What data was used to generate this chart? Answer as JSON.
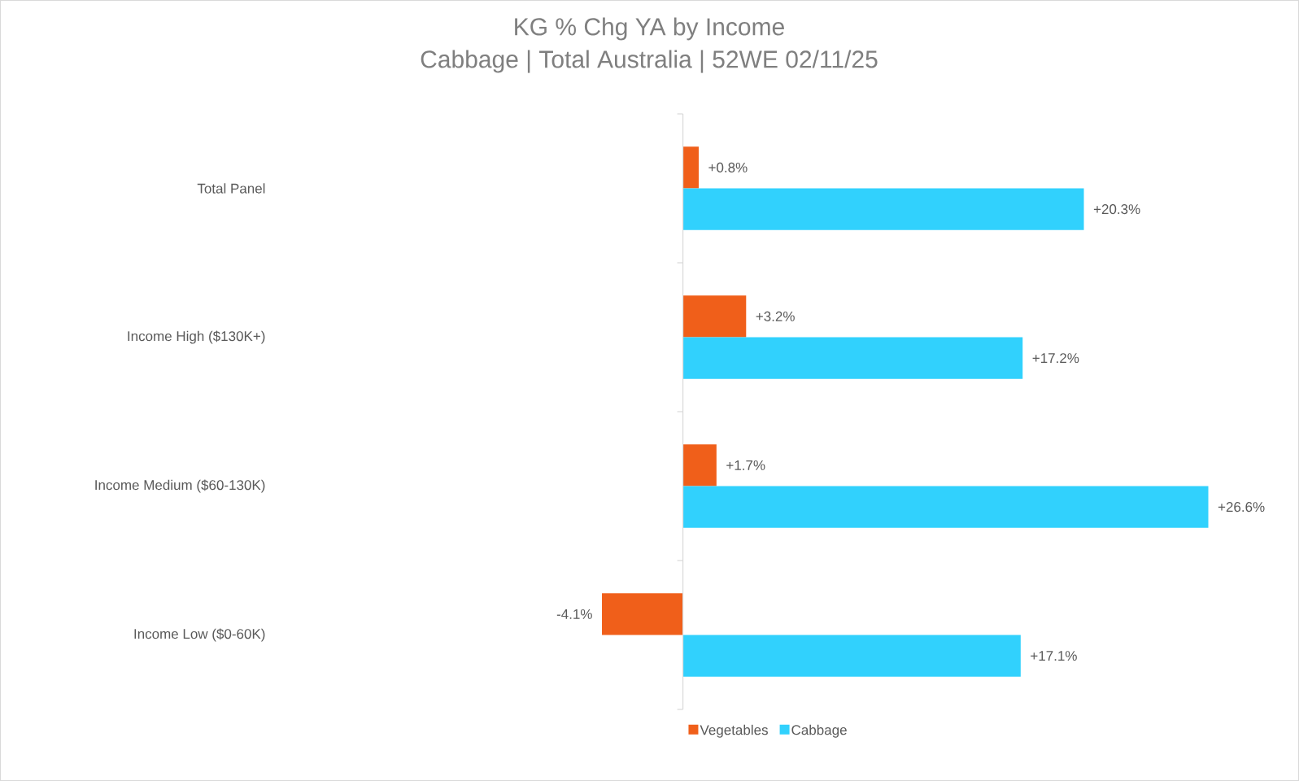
{
  "chart_data": {
    "type": "bar",
    "orientation": "horizontal",
    "title": "KG % Chg YA by Income",
    "subtitle": "Cabbage | Total Australia | 52WE 02/11/25",
    "categories": [
      "Total Panel",
      "Income High ($130K+)",
      "Income Medium ($60-130K)",
      "Income Low ($0-60K)"
    ],
    "series": [
      {
        "name": "Vegetables",
        "color": "#f05f1a",
        "values": [
          0.8,
          3.2,
          1.7,
          -4.1
        ],
        "value_labels": [
          "+0.8%",
          "+3.2%",
          "+1.7%",
          "-4.1%"
        ]
      },
      {
        "name": "Cabbage",
        "color": "#31d1fd",
        "values": [
          20.3,
          17.2,
          26.6,
          17.1
        ],
        "value_labels": [
          "+20.3%",
          "+17.2%",
          "+26.6%",
          "+17.1%"
        ]
      }
    ],
    "legend": "bottom"
  }
}
